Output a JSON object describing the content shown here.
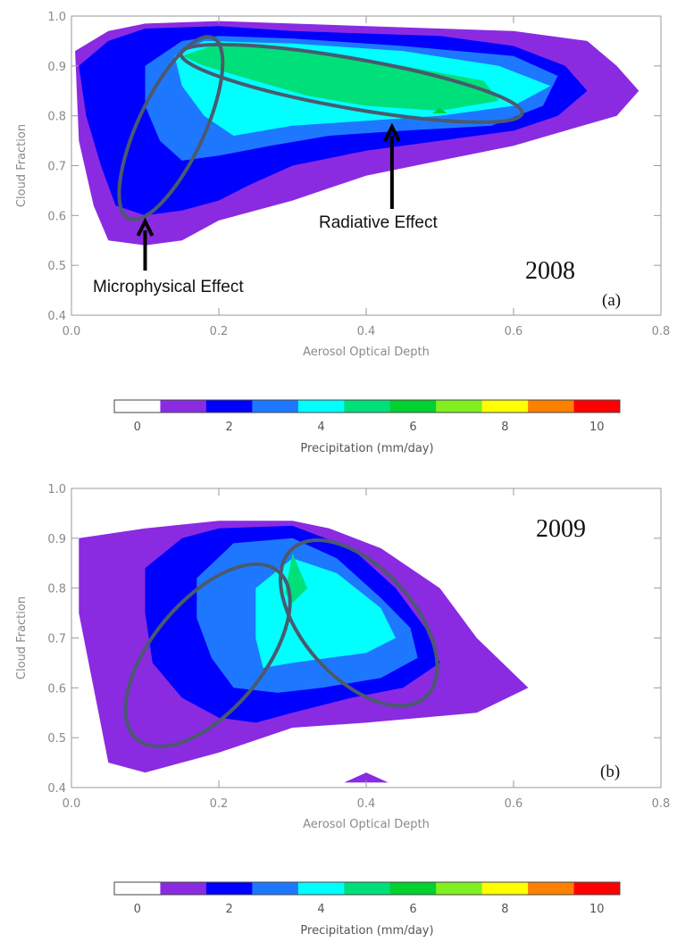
{
  "chart_data": [
    {
      "type": "contour",
      "panel_label": "(a)",
      "year_label": "2008",
      "xlabel": "Aerosol Optical Depth",
      "ylabel": "Cloud Fraction",
      "xlim": [
        0.0,
        0.8
      ],
      "ylim": [
        0.4,
        1.0
      ],
      "xticks": [
        "0.0",
        "0.2",
        "0.4",
        "0.6",
        "0.8"
      ],
      "yticks": [
        "0.4",
        "0.5",
        "0.6",
        "0.7",
        "0.8",
        "0.9",
        "1.0"
      ],
      "contours": [
        {
          "level": 1,
          "color": "#8a2be2",
          "points": [
            [
              0.005,
              0.93
            ],
            [
              0.05,
              0.97
            ],
            [
              0.1,
              0.985
            ],
            [
              0.2,
              0.99
            ],
            [
              0.3,
              0.985
            ],
            [
              0.4,
              0.98
            ],
            [
              0.5,
              0.975
            ],
            [
              0.6,
              0.97
            ],
            [
              0.7,
              0.95
            ],
            [
              0.74,
              0.9
            ],
            [
              0.77,
              0.85
            ],
            [
              0.74,
              0.8
            ],
            [
              0.6,
              0.74
            ],
            [
              0.5,
              0.71
            ],
            [
              0.4,
              0.68
            ],
            [
              0.3,
              0.63
            ],
            [
              0.2,
              0.59
            ],
            [
              0.15,
              0.55
            ],
            [
              0.1,
              0.54
            ],
            [
              0.05,
              0.55
            ],
            [
              0.03,
              0.62
            ],
            [
              0.01,
              0.75
            ]
          ]
        },
        {
          "level": 2,
          "color": "#0000ff",
          "points": [
            [
              0.01,
              0.9
            ],
            [
              0.05,
              0.95
            ],
            [
              0.1,
              0.975
            ],
            [
              0.2,
              0.98
            ],
            [
              0.3,
              0.97
            ],
            [
              0.5,
              0.96
            ],
            [
              0.6,
              0.94
            ],
            [
              0.67,
              0.9
            ],
            [
              0.7,
              0.85
            ],
            [
              0.66,
              0.8
            ],
            [
              0.6,
              0.77
            ],
            [
              0.5,
              0.75
            ],
            [
              0.4,
              0.73
            ],
            [
              0.3,
              0.7
            ],
            [
              0.24,
              0.66
            ],
            [
              0.2,
              0.63
            ],
            [
              0.15,
              0.61
            ],
            [
              0.1,
              0.6
            ],
            [
              0.06,
              0.62
            ],
            [
              0.04,
              0.7
            ],
            [
              0.02,
              0.8
            ]
          ]
        },
        {
          "level": 3,
          "color": "#1e78ff",
          "points": [
            [
              0.1,
              0.9
            ],
            [
              0.15,
              0.95
            ],
            [
              0.2,
              0.96
            ],
            [
              0.3,
              0.955
            ],
            [
              0.45,
              0.94
            ],
            [
              0.6,
              0.92
            ],
            [
              0.66,
              0.88
            ],
            [
              0.64,
              0.82
            ],
            [
              0.57,
              0.78
            ],
            [
              0.45,
              0.77
            ],
            [
              0.35,
              0.76
            ],
            [
              0.27,
              0.74
            ],
            [
              0.2,
              0.72
            ],
            [
              0.15,
              0.71
            ],
            [
              0.12,
              0.75
            ],
            [
              0.1,
              0.82
            ]
          ]
        },
        {
          "level": 4,
          "color": "#00ffff",
          "points": [
            [
              0.14,
              0.92
            ],
            [
              0.18,
              0.95
            ],
            [
              0.3,
              0.945
            ],
            [
              0.45,
              0.93
            ],
            [
              0.58,
              0.9
            ],
            [
              0.65,
              0.86
            ],
            [
              0.6,
              0.82
            ],
            [
              0.5,
              0.8
            ],
            [
              0.4,
              0.79
            ],
            [
              0.3,
              0.78
            ],
            [
              0.22,
              0.76
            ],
            [
              0.18,
              0.8
            ],
            [
              0.15,
              0.86
            ]
          ]
        },
        {
          "level": 5,
          "color": "#00e07a",
          "points": [
            [
              0.15,
              0.92
            ],
            [
              0.2,
              0.945
            ],
            [
              0.3,
              0.93
            ],
            [
              0.45,
              0.9
            ],
            [
              0.56,
              0.87
            ],
            [
              0.58,
              0.83
            ],
            [
              0.5,
              0.81
            ],
            [
              0.4,
              0.82
            ],
            [
              0.32,
              0.84
            ],
            [
              0.25,
              0.87
            ],
            [
              0.18,
              0.9
            ]
          ]
        },
        {
          "level": 6,
          "color": "#00d030",
          "points": [
            [
              0.19,
              0.94
            ],
            [
              0.2,
              0.95
            ],
            [
              0.21,
              0.94
            ]
          ]
        },
        {
          "level": 6,
          "color": "#00d030",
          "points": [
            [
              0.49,
              0.805
            ],
            [
              0.5,
              0.815
            ],
            [
              0.51,
              0.805
            ]
          ]
        }
      ],
      "ellipses": [
        {
          "name": "microphysical-ellipse",
          "cx": 0.135,
          "cy": 0.775,
          "rx": 0.045,
          "ry": 0.2,
          "rot": 25
        },
        {
          "name": "radiative-ellipse",
          "cx": 0.38,
          "cy": 0.865,
          "rx": 0.235,
          "ry": 0.05,
          "rot": 10
        }
      ],
      "annotations": [
        {
          "text": "Microphysical Effect",
          "x": 0.1,
          "y": 0.575
        },
        {
          "text": "Radiative Effect",
          "x": 0.435,
          "y": 0.775
        }
      ]
    },
    {
      "type": "contour",
      "panel_label": "(b)",
      "year_label": "2009",
      "xlabel": "Aerosol Optical Depth",
      "ylabel": "Cloud Fraction",
      "xlim": [
        0.0,
        0.8
      ],
      "ylim": [
        0.4,
        1.0
      ],
      "xticks": [
        "0.0",
        "0.2",
        "0.4",
        "0.6",
        "0.8"
      ],
      "yticks": [
        "0.4",
        "0.5",
        "0.6",
        "0.7",
        "0.8",
        "0.9",
        "1.0"
      ],
      "contours": [
        {
          "level": 1,
          "color": "#8a2be2",
          "points": [
            [
              0.01,
              0.9
            ],
            [
              0.1,
              0.92
            ],
            [
              0.2,
              0.935
            ],
            [
              0.3,
              0.935
            ],
            [
              0.35,
              0.92
            ],
            [
              0.42,
              0.88
            ],
            [
              0.5,
              0.8
            ],
            [
              0.55,
              0.7
            ],
            [
              0.62,
              0.6
            ],
            [
              0.55,
              0.55
            ],
            [
              0.4,
              0.53
            ],
            [
              0.3,
              0.52
            ],
            [
              0.2,
              0.47
            ],
            [
              0.1,
              0.43
            ],
            [
              0.05,
              0.45
            ],
            [
              0.03,
              0.6
            ],
            [
              0.01,
              0.75
            ]
          ]
        },
        {
          "level": 2,
          "color": "#0000ff",
          "points": [
            [
              0.1,
              0.84
            ],
            [
              0.15,
              0.9
            ],
            [
              0.2,
              0.92
            ],
            [
              0.3,
              0.925
            ],
            [
              0.38,
              0.88
            ],
            [
              0.44,
              0.8
            ],
            [
              0.48,
              0.72
            ],
            [
              0.5,
              0.65
            ],
            [
              0.45,
              0.6
            ],
            [
              0.38,
              0.58
            ],
            [
              0.3,
              0.55
            ],
            [
              0.25,
              0.53
            ],
            [
              0.2,
              0.54
            ],
            [
              0.15,
              0.58
            ],
            [
              0.11,
              0.65
            ],
            [
              0.1,
              0.75
            ]
          ]
        },
        {
          "level": 3,
          "color": "#1e78ff",
          "points": [
            [
              0.17,
              0.82
            ],
            [
              0.22,
              0.89
            ],
            [
              0.3,
              0.9
            ],
            [
              0.36,
              0.86
            ],
            [
              0.42,
              0.78
            ],
            [
              0.46,
              0.72
            ],
            [
              0.47,
              0.66
            ],
            [
              0.42,
              0.62
            ],
            [
              0.34,
              0.6
            ],
            [
              0.28,
              0.59
            ],
            [
              0.22,
              0.6
            ],
            [
              0.19,
              0.66
            ],
            [
              0.17,
              0.74
            ]
          ]
        },
        {
          "level": 4,
          "color": "#00ffff",
          "points": [
            [
              0.25,
              0.8
            ],
            [
              0.3,
              0.86
            ],
            [
              0.36,
              0.83
            ],
            [
              0.42,
              0.76
            ],
            [
              0.44,
              0.7
            ],
            [
              0.4,
              0.67
            ],
            [
              0.35,
              0.66
            ],
            [
              0.3,
              0.65
            ],
            [
              0.26,
              0.64
            ],
            [
              0.25,
              0.7
            ]
          ]
        },
        {
          "level": 5,
          "color": "#00e07a",
          "points": [
            [
              0.29,
              0.79
            ],
            [
              0.3,
              0.87
            ],
            [
              0.32,
              0.8
            ],
            [
              0.3,
              0.77
            ]
          ]
        },
        {
          "level": 1,
          "color": "#8a2be2",
          "points": [
            [
              0.0,
              0.4
            ],
            [
              0.02,
              0.395
            ],
            [
              0.0,
              0.39
            ]
          ]
        },
        {
          "level": 1,
          "color": "#8a2be2",
          "points": [
            [
              0.37,
              0.41
            ],
            [
              0.4,
              0.43
            ],
            [
              0.43,
              0.41
            ]
          ]
        }
      ],
      "ellipses": [
        {
          "name": "microphysical-ellipse",
          "cx": 0.185,
          "cy": 0.665,
          "rx": 0.075,
          "ry": 0.22,
          "rot": 40
        },
        {
          "name": "radiative-ellipse",
          "cx": 0.39,
          "cy": 0.73,
          "rx": 0.075,
          "ry": 0.2,
          "rot": -42
        }
      ],
      "annotations": []
    }
  ],
  "colorbar": {
    "title": "Precipitation (mm/day)",
    "colors": [
      "#ffffff",
      "#8a2be2",
      "#0000ff",
      "#1e78ff",
      "#00ffff",
      "#00e07a",
      "#00d030",
      "#80f020",
      "#ffff00",
      "#ff8000",
      "#ff0000"
    ],
    "tick_labels": [
      "0",
      "2",
      "4",
      "6",
      "8",
      "10"
    ]
  }
}
